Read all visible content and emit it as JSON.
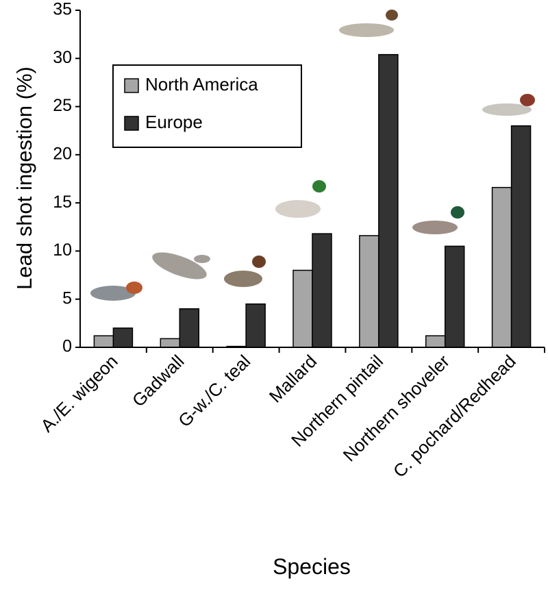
{
  "chart_data": {
    "type": "bar",
    "ylabel": "Lead shot ingestion (%)",
    "xlabel": "Species",
    "categories": [
      "A./E. wigeon",
      "Gadwall",
      "G-w./C. teal",
      "Mallard",
      "Northern pintail",
      "Northern shoveler",
      "C. pochard/Redhead"
    ],
    "series": [
      {
        "name": "North America",
        "color": "#a6a6a6",
        "values": [
          1.2,
          0.9,
          0.1,
          8.0,
          11.6,
          1.2,
          16.6
        ]
      },
      {
        "name": "Europe",
        "color": "#333333",
        "values": [
          2.0,
          4.0,
          4.5,
          11.8,
          30.4,
          10.5,
          23.0
        ]
      }
    ],
    "ylim": [
      0,
      35
    ],
    "yticks": [
      0,
      5,
      10,
      15,
      20,
      25,
      30,
      35
    ],
    "legend": "upper-left"
  }
}
